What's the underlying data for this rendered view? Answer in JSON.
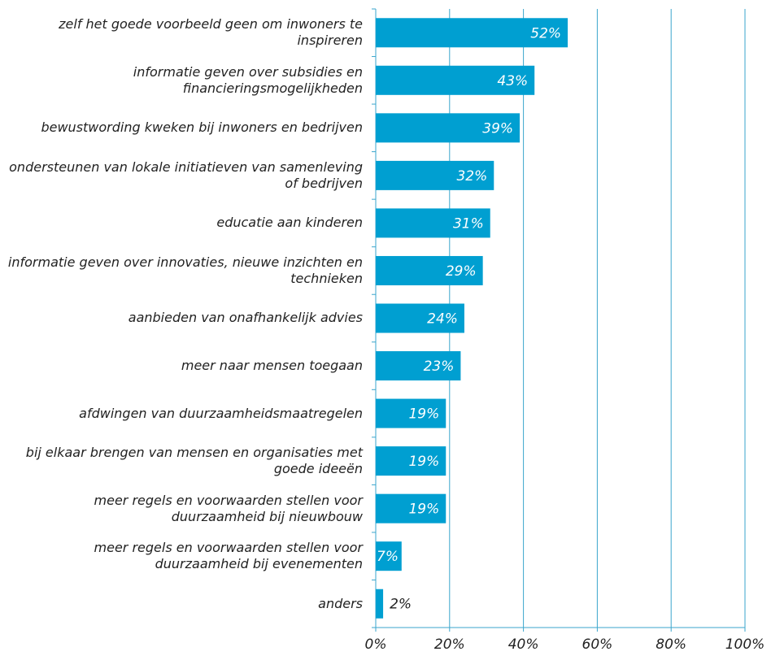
{
  "chart_data": {
    "type": "bar",
    "orientation": "horizontal",
    "categories": [
      "zelf het goede voorbeeld geen om inwoners te inspireren",
      "informatie geven over subsidies en financieringsmogelijkheden",
      "bewustwording kweken bij inwoners en bedrijven",
      "ondersteunen van lokale initiatieven van samenleving of bedrijven",
      "educatie aan kinderen",
      "informatie geven over innovaties, nieuwe inzichten en technieken",
      "aanbieden van onafhankelijk advies",
      "meer naar mensen toegaan",
      "afdwingen van duurzaamheidsmaatregelen",
      "bij elkaar brengen van mensen en organisaties met goede ideeën",
      "meer regels en voorwaarden stellen voor duurzaamheid bij nieuwbouw",
      "meer regels en voorwaarden stellen voor duurzaamheid bij evenementen",
      "anders"
    ],
    "values": [
      52,
      43,
      39,
      32,
      31,
      29,
      24,
      23,
      19,
      19,
      19,
      7,
      2
    ],
    "value_labels": [
      "52%",
      "43%",
      "39%",
      "32%",
      "31%",
      "29%",
      "24%",
      "23%",
      "19%",
      "19%",
      "19%",
      "7%",
      "2%"
    ],
    "color": "#009fd1",
    "xlim": [
      0,
      100
    ],
    "xticks": [
      {
        "value": 0,
        "label": "0%"
      },
      {
        "value": 20,
        "label": "20%"
      },
      {
        "value": 40,
        "label": "40%"
      },
      {
        "value": 60,
        "label": "60%"
      },
      {
        "value": 80,
        "label": "80%"
      },
      {
        "value": 100,
        "label": "100%"
      }
    ],
    "grid": true
  }
}
